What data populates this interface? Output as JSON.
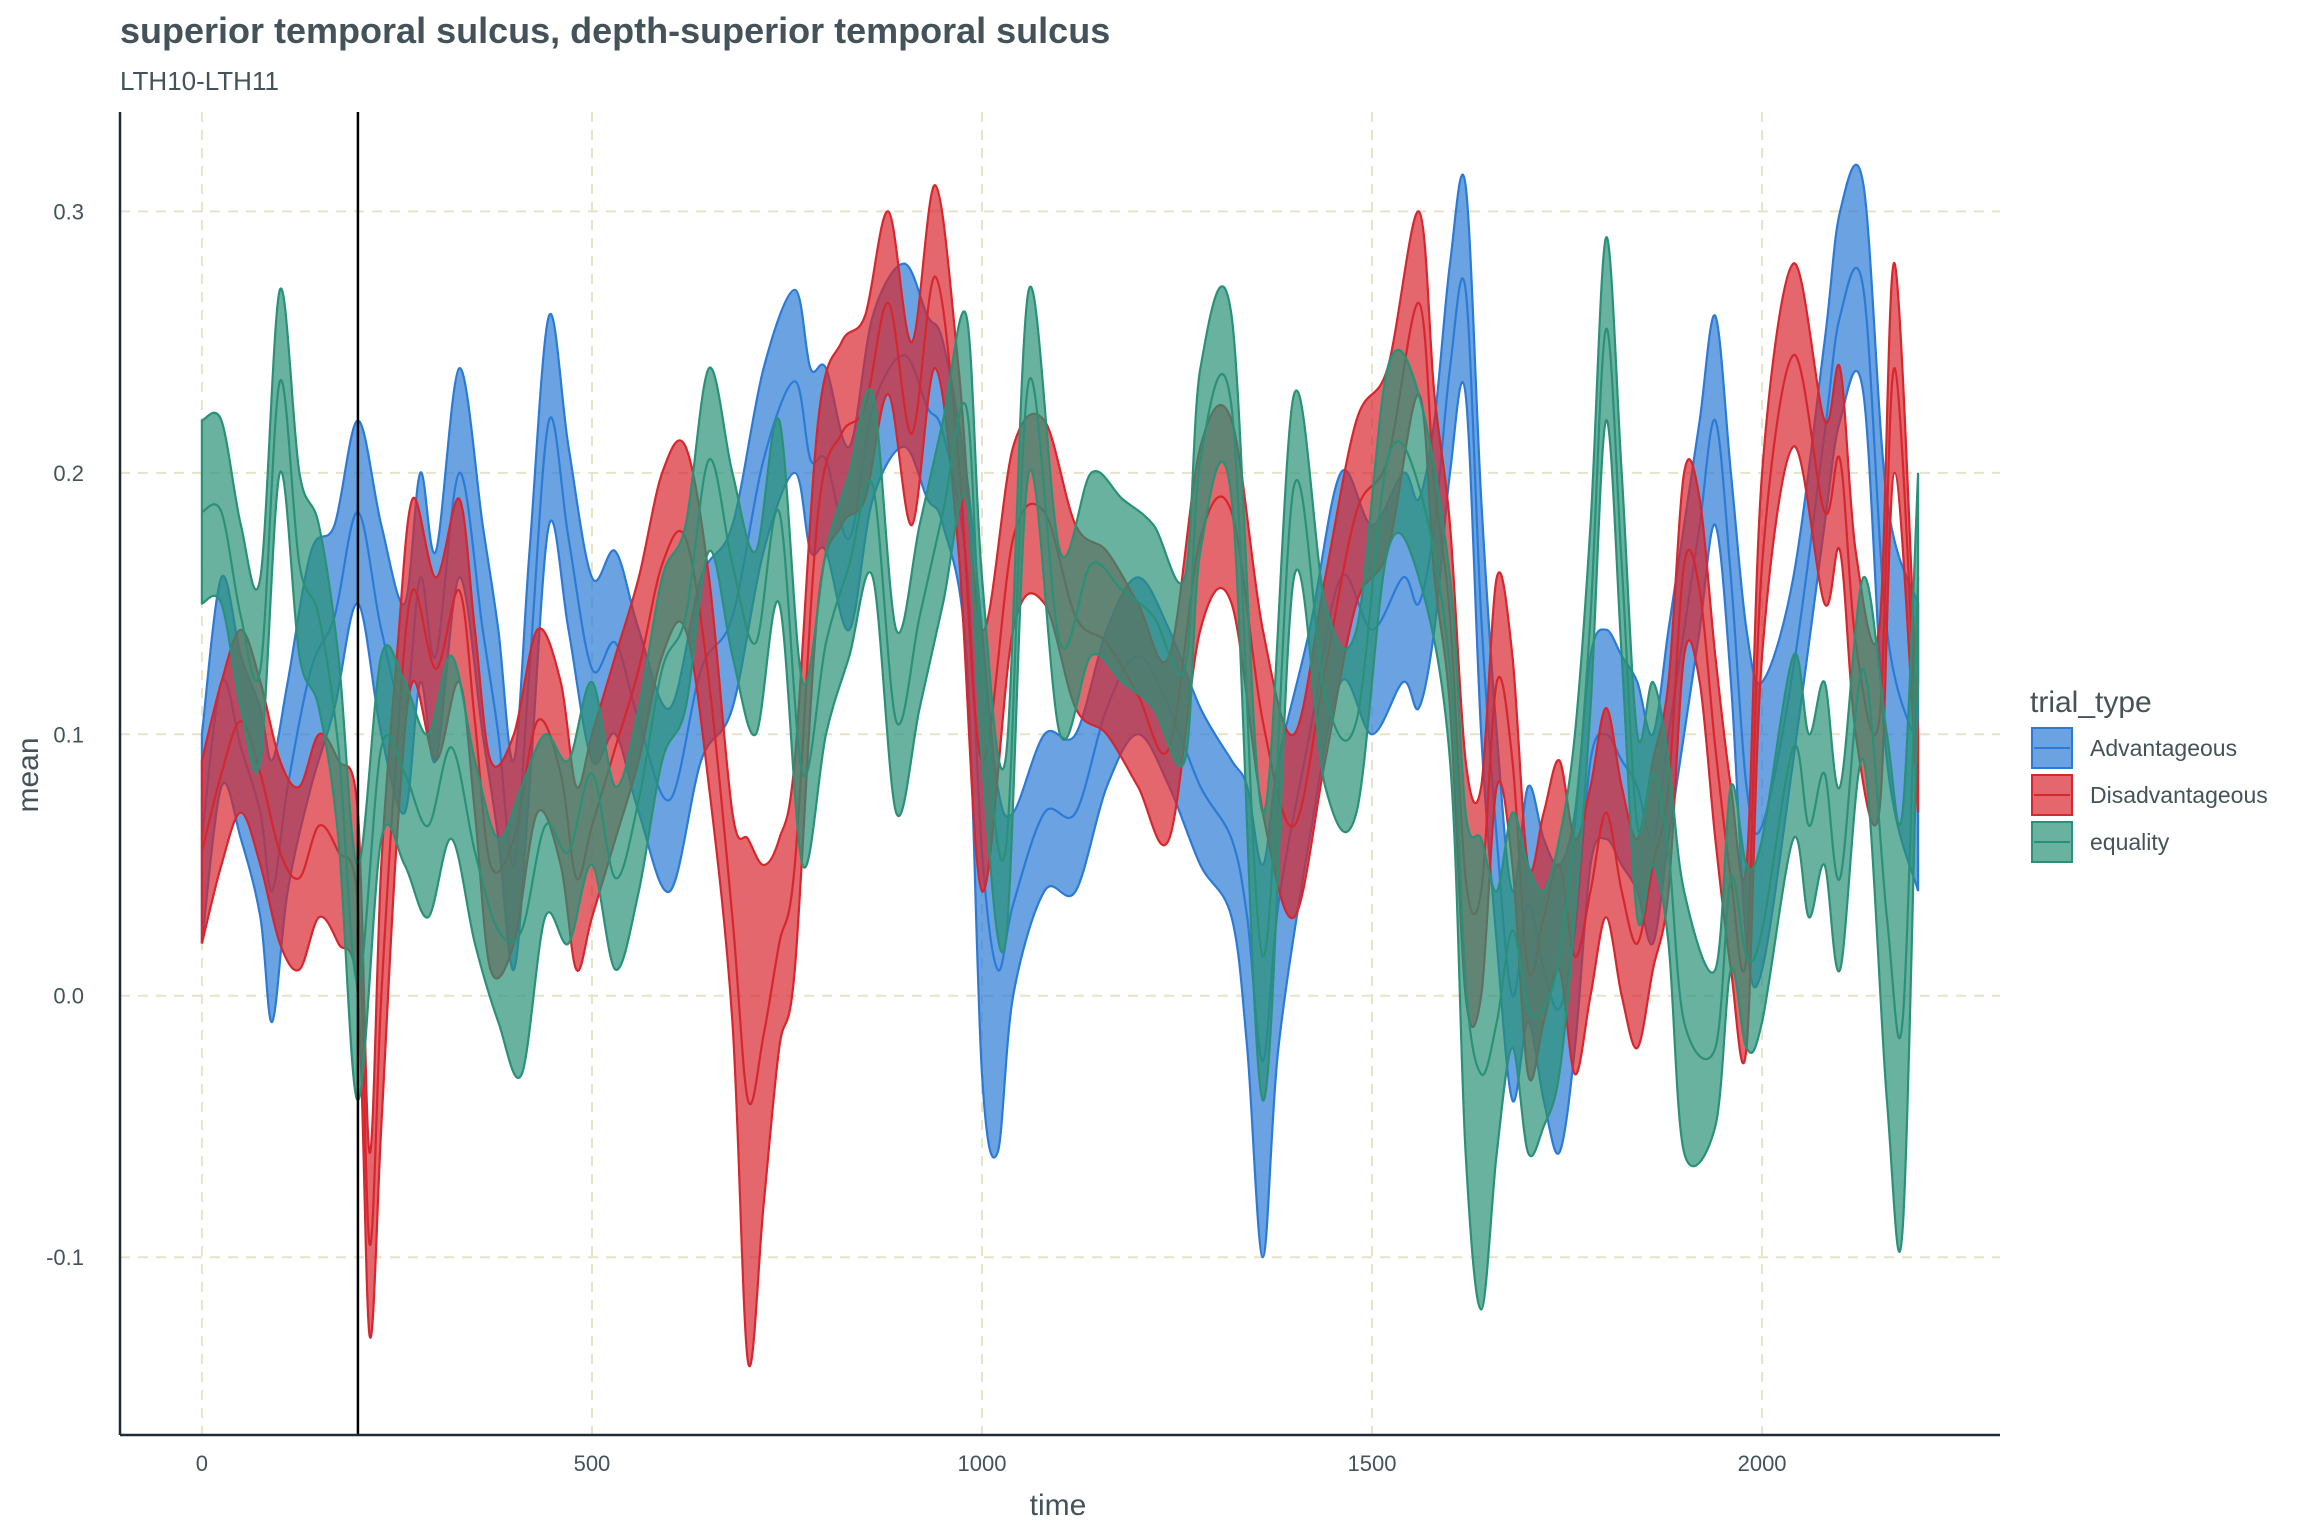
{
  "chart_data": {
    "type": "area",
    "subtype": "ribbon",
    "title": "superior temporal sulcus, depth-superior temporal sulcus",
    "subtitle": "LTH10-LTH11",
    "xlabel": "time",
    "ylabel": "mean",
    "xlim": [
      -105,
      2305
    ],
    "ylim": [
      -0.168,
      0.338
    ],
    "xticks": [
      0,
      500,
      1000,
      1500,
      2000
    ],
    "xtick_labels": [
      "0",
      "500",
      "1000",
      "1500",
      "2000"
    ],
    "yticks": [
      -0.1,
      0.0,
      0.1,
      0.2,
      0.3
    ],
    "ytick_labels": [
      "-0.1",
      "0.0",
      "0.1",
      "0.2",
      "0.3"
    ],
    "grid": "major dashed",
    "vline": 200,
    "legend": {
      "title": "trial_type",
      "position": "right"
    },
    "series": [
      {
        "name": "Advantageous",
        "color": "#2b7bd6",
        "x": [
          0,
          25,
          50,
          75,
          90,
          110,
          140,
          170,
          200,
          230,
          260,
          280,
          300,
          330,
          360,
          380,
          400,
          420,
          445,
          470,
          500,
          530,
          560,
          600,
          640,
          680,
          720,
          760,
          780,
          800,
          830,
          860,
          900,
          930,
          950,
          980,
          1000,
          1020,
          1040,
          1080,
          1120,
          1160,
          1200,
          1240,
          1280,
          1320,
          1340,
          1360,
          1380,
          1420,
          1460,
          1500,
          1540,
          1560,
          1580,
          1600,
          1620,
          1640,
          1660,
          1680,
          1700,
          1720,
          1740,
          1760,
          1780,
          1800,
          1820,
          1840,
          1860,
          1880,
          1900,
          1920,
          1940,
          1960,
          1980,
          2000,
          2040,
          2080,
          2100,
          2130,
          2160,
          2200
        ],
        "upper": [
          0.1,
          0.16,
          0.13,
          0.11,
          0.09,
          0.12,
          0.17,
          0.18,
          0.22,
          0.18,
          0.15,
          0.2,
          0.17,
          0.24,
          0.18,
          0.14,
          0.09,
          0.17,
          0.26,
          0.21,
          0.16,
          0.17,
          0.14,
          0.11,
          0.16,
          0.18,
          0.24,
          0.27,
          0.24,
          0.24,
          0.21,
          0.26,
          0.28,
          0.26,
          0.25,
          0.2,
          0.14,
          0.08,
          0.07,
          0.1,
          0.1,
          0.14,
          0.16,
          0.14,
          0.11,
          0.09,
          0.08,
          0.05,
          0.09,
          0.14,
          0.2,
          0.18,
          0.2,
          0.19,
          0.22,
          0.28,
          0.31,
          0.19,
          0.1,
          0.04,
          0.08,
          0.06,
          0.05,
          0.07,
          0.13,
          0.14,
          0.13,
          0.12,
          0.1,
          0.14,
          0.18,
          0.22,
          0.26,
          0.2,
          0.14,
          0.12,
          0.16,
          0.25,
          0.3,
          0.31,
          0.19,
          0.15
        ],
        "lower": [
          0.02,
          0.08,
          0.06,
          0.03,
          -0.01,
          0.04,
          0.08,
          0.11,
          0.15,
          0.1,
          0.07,
          0.12,
          0.09,
          0.16,
          0.1,
          0.06,
          0.01,
          0.08,
          0.18,
          0.14,
          0.09,
          0.1,
          0.07,
          0.04,
          0.09,
          0.11,
          0.17,
          0.2,
          0.17,
          0.17,
          0.14,
          0.19,
          0.21,
          0.19,
          0.18,
          0.13,
          -0.03,
          -0.06,
          0.0,
          0.04,
          0.04,
          0.08,
          0.1,
          0.08,
          0.05,
          0.03,
          -0.02,
          -0.1,
          -0.02,
          0.06,
          0.12,
          0.1,
          0.12,
          0.11,
          0.14,
          0.2,
          0.23,
          0.1,
          0.02,
          -0.04,
          -0.01,
          -0.04,
          -0.06,
          -0.02,
          0.05,
          0.06,
          0.05,
          0.04,
          0.02,
          0.06,
          0.1,
          0.14,
          0.18,
          0.12,
          0.02,
          0.01,
          0.09,
          0.18,
          0.22,
          0.23,
          0.09,
          0.04
        ]
      },
      {
        "name": "Disadvantageous",
        "color": "#d7262e",
        "x": [
          0,
          25,
          50,
          75,
          100,
          125,
          150,
          175,
          200,
          215,
          230,
          250,
          270,
          300,
          330,
          350,
          370,
          400,
          430,
          460,
          480,
          500,
          530,
          560,
          590,
          620,
          650,
          680,
          700,
          720,
          740,
          760,
          790,
          820,
          850,
          880,
          910,
          940,
          970,
          1000,
          1040,
          1080,
          1120,
          1160,
          1200,
          1240,
          1280,
          1320,
          1360,
          1400,
          1440,
          1480,
          1520,
          1560,
          1580,
          1600,
          1620,
          1640,
          1660,
          1680,
          1700,
          1720,
          1740,
          1760,
          1780,
          1800,
          1820,
          1840,
          1860,
          1880,
          1900,
          1920,
          1940,
          1960,
          1980,
          2000,
          2040,
          2080,
          2100,
          2120,
          2150,
          2170,
          2200
        ],
        "upper": [
          0.09,
          0.12,
          0.14,
          0.12,
          0.09,
          0.08,
          0.1,
          0.09,
          0.07,
          -0.06,
          0.05,
          0.13,
          0.19,
          0.16,
          0.19,
          0.14,
          0.09,
          0.1,
          0.14,
          0.12,
          0.08,
          0.1,
          0.13,
          0.16,
          0.2,
          0.21,
          0.16,
          0.07,
          0.06,
          0.05,
          0.06,
          0.09,
          0.22,
          0.25,
          0.26,
          0.3,
          0.25,
          0.31,
          0.24,
          0.14,
          0.21,
          0.22,
          0.18,
          0.17,
          0.15,
          0.13,
          0.21,
          0.22,
          0.14,
          0.1,
          0.16,
          0.22,
          0.24,
          0.3,
          0.23,
          0.18,
          0.09,
          0.08,
          0.16,
          0.13,
          0.05,
          0.07,
          0.09,
          0.06,
          0.08,
          0.11,
          0.08,
          0.06,
          0.09,
          0.12,
          0.2,
          0.19,
          0.13,
          0.08,
          0.05,
          0.2,
          0.28,
          0.22,
          0.24,
          0.17,
          0.14,
          0.28,
          0.1
        ],
        "lower": [
          0.02,
          0.05,
          0.07,
          0.05,
          0.02,
          0.01,
          0.03,
          0.02,
          0.0,
          -0.13,
          -0.05,
          0.06,
          0.12,
          0.09,
          0.12,
          0.07,
          0.01,
          0.02,
          0.07,
          0.05,
          0.01,
          0.03,
          0.06,
          0.09,
          0.13,
          0.14,
          0.08,
          -0.01,
          -0.14,
          -0.08,
          -0.02,
          0.01,
          0.15,
          0.18,
          0.19,
          0.23,
          0.18,
          0.24,
          0.17,
          0.04,
          0.14,
          0.15,
          0.11,
          0.1,
          0.08,
          0.06,
          0.14,
          0.15,
          0.07,
          0.03,
          0.09,
          0.15,
          0.17,
          0.23,
          0.16,
          0.11,
          0.0,
          0.0,
          0.08,
          0.05,
          -0.03,
          -0.01,
          0.01,
          -0.03,
          0.0,
          0.03,
          0.0,
          -0.02,
          0.01,
          0.04,
          0.13,
          0.12,
          0.06,
          0.01,
          -0.02,
          0.13,
          0.21,
          0.15,
          0.17,
          0.1,
          0.07,
          0.2,
          0.07
        ]
      },
      {
        "name": "equality",
        "color": "#2a9178",
        "x": [
          0,
          25,
          50,
          75,
          100,
          125,
          150,
          175,
          200,
          230,
          260,
          290,
          320,
          350,
          380,
          410,
          440,
          470,
          500,
          530,
          560,
          590,
          620,
          650,
          680,
          710,
          740,
          770,
          800,
          830,
          860,
          890,
          920,
          950,
          980,
          1000,
          1030,
          1060,
          1100,
          1140,
          1180,
          1220,
          1260,
          1280,
          1320,
          1360,
          1400,
          1440,
          1480,
          1520,
          1560,
          1600,
          1620,
          1640,
          1660,
          1680,
          1700,
          1720,
          1740,
          1760,
          1780,
          1800,
          1820,
          1840,
          1860,
          1880,
          1900,
          1940,
          1960,
          1980,
          2000,
          2040,
          2060,
          2080,
          2100,
          2130,
          2160,
          2180,
          2200
        ],
        "upper": [
          0.22,
          0.22,
          0.18,
          0.16,
          0.27,
          0.2,
          0.18,
          0.13,
          0.05,
          0.13,
          0.12,
          0.1,
          0.13,
          0.09,
          0.06,
          0.08,
          0.1,
          0.09,
          0.12,
          0.08,
          0.11,
          0.16,
          0.18,
          0.24,
          0.2,
          0.17,
          0.22,
          0.12,
          0.17,
          0.2,
          0.23,
          0.14,
          0.18,
          0.22,
          0.26,
          0.16,
          0.09,
          0.27,
          0.17,
          0.2,
          0.19,
          0.18,
          0.16,
          0.24,
          0.26,
          0.07,
          0.23,
          0.15,
          0.14,
          0.24,
          0.23,
          0.16,
          0.07,
          0.06,
          0.04,
          0.07,
          0.05,
          0.04,
          0.06,
          0.1,
          0.18,
          0.29,
          0.2,
          0.1,
          0.12,
          0.09,
          0.04,
          0.01,
          0.08,
          0.05,
          0.06,
          0.13,
          0.1,
          0.12,
          0.08,
          0.16,
          0.1,
          0.07,
          0.2
        ],
        "lower": [
          0.15,
          0.15,
          0.11,
          0.09,
          0.2,
          0.13,
          0.11,
          0.06,
          -0.04,
          0.06,
          0.05,
          0.03,
          0.06,
          0.02,
          -0.01,
          -0.03,
          0.03,
          0.02,
          0.05,
          0.01,
          0.04,
          0.09,
          0.11,
          0.17,
          0.13,
          0.1,
          0.15,
          0.05,
          0.1,
          0.13,
          0.16,
          0.07,
          0.11,
          0.15,
          0.19,
          0.09,
          0.02,
          0.2,
          0.1,
          0.13,
          0.12,
          0.11,
          0.09,
          0.17,
          0.19,
          -0.04,
          0.16,
          0.08,
          0.07,
          0.17,
          0.16,
          0.09,
          -0.06,
          -0.12,
          -0.06,
          -0.02,
          -0.06,
          -0.05,
          -0.03,
          0.03,
          0.11,
          0.22,
          0.13,
          0.03,
          0.05,
          0.02,
          -0.06,
          -0.05,
          0.01,
          -0.02,
          -0.01,
          0.06,
          0.03,
          0.05,
          0.01,
          0.09,
          -0.04,
          -0.09,
          0.12
        ]
      }
    ]
  }
}
